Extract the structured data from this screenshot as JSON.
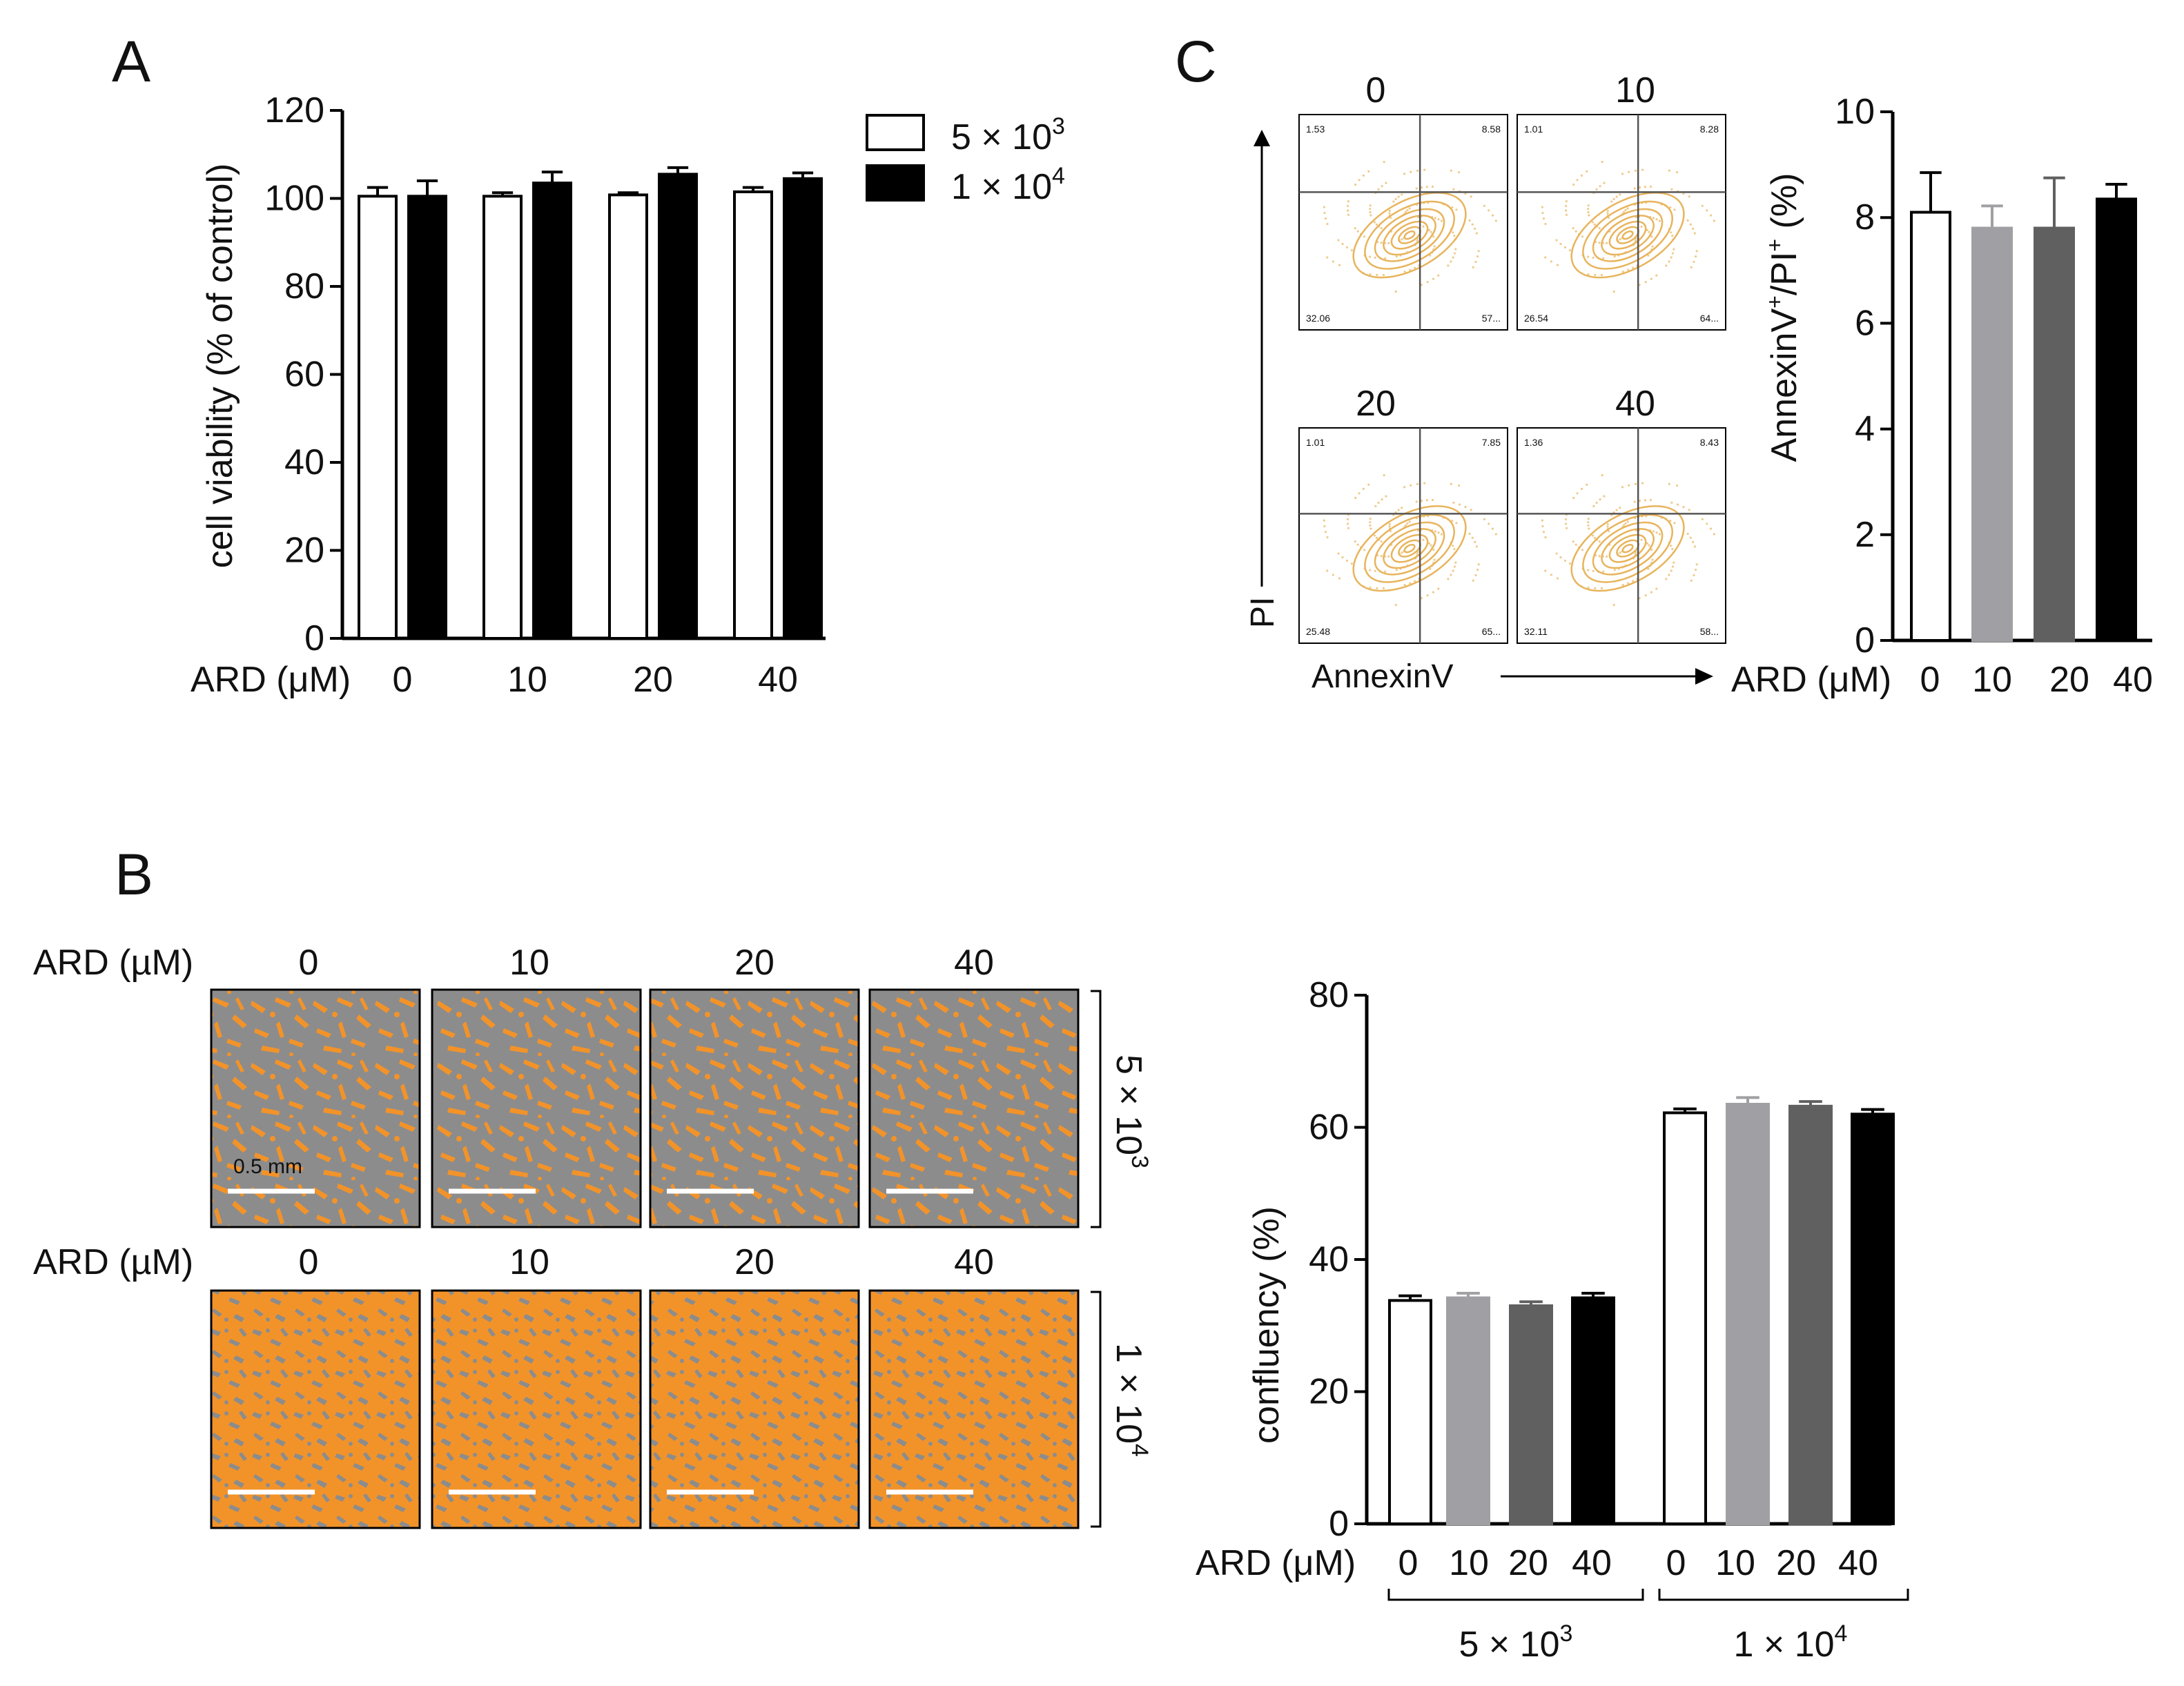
{
  "figure": {
    "panel_labels": {
      "A": "A",
      "B": "B",
      "C": "C"
    },
    "ard_label": "ARD (μM)",
    "ard_label_alt": "ARD (µM)",
    "times_sign": "×",
    "density_5e3": {
      "base": "5 × 10",
      "exp": "3"
    },
    "density_1e4": {
      "base": "1 × 10",
      "exp": "4"
    }
  },
  "panel_b_images": {
    "row_labels": [
      "5 × 10³",
      "1 × 10⁴"
    ],
    "column_labels": [
      "0",
      "10",
      "20",
      "40"
    ],
    "scale_bar_label": "0.5 mm",
    "cell_color": "#f2932a",
    "background_color": "#8c8c8c"
  },
  "panel_c_flow": {
    "x_axis_label": "AnnexinV",
    "y_axis_label": "PI",
    "contour_color": "#e8b45c",
    "plots": [
      {
        "title": "0",
        "q_ul": "1.53",
        "q_ur": "8.58",
        "q_ll": "32.06",
        "q_lr": "57..."
      },
      {
        "title": "10",
        "q_ul": "1.01",
        "q_ur": "8.28",
        "q_ll": "26.54",
        "q_lr": "64..."
      },
      {
        "title": "20",
        "q_ul": "1.01",
        "q_ur": "7.85",
        "q_ll": "25.48",
        "q_lr": "65..."
      },
      {
        "title": "40",
        "q_ul": "1.36",
        "q_ur": "8.43",
        "q_ll": "32.11",
        "q_lr": "58..."
      }
    ]
  },
  "chart_data": [
    {
      "id": "A",
      "type": "bar",
      "title": "",
      "xlabel": "ARD (μM)",
      "ylabel": "cell viability (% of control)",
      "ylim": [
        0,
        120
      ],
      "yticks": [
        0,
        20,
        40,
        60,
        80,
        100,
        120
      ],
      "categories": [
        "0",
        "10",
        "20",
        "40"
      ],
      "legend_position": "top-right",
      "series": [
        {
          "name": "5 × 10³",
          "fill": "#ffffff",
          "values": [
            100.5,
            100.5,
            100.8,
            101.5
          ],
          "errors": [
            2.0,
            0.8,
            0.5,
            1.0
          ]
        },
        {
          "name": "1 × 10⁴",
          "fill": "#000000",
          "values": [
            100.5,
            103.5,
            105.5,
            104.5
          ],
          "errors": [
            3.5,
            2.5,
            1.5,
            1.3
          ]
        }
      ]
    },
    {
      "id": "B",
      "type": "bar",
      "title": "",
      "xlabel": "ARD (μM)",
      "ylabel": "confluency (%)",
      "ylim": [
        0,
        80
      ],
      "yticks": [
        0,
        20,
        40,
        60,
        80
      ],
      "group_labels": [
        "5 × 10³",
        "1 × 10⁴"
      ],
      "categories": [
        "0",
        "10",
        "20",
        "40"
      ],
      "bar_fills": [
        "#ffffff",
        "#a0a0a4",
        "#606060",
        "#000000"
      ],
      "series": [
        {
          "name": "5 × 10³",
          "values": [
            33.8,
            34.2,
            33.0,
            34.2
          ],
          "errors": [
            0.7,
            0.7,
            0.6,
            0.7
          ]
        },
        {
          "name": "1 × 10⁴",
          "values": [
            62.2,
            63.5,
            63.2,
            62.0
          ],
          "errors": [
            0.6,
            1.0,
            0.7,
            0.7
          ]
        }
      ]
    },
    {
      "id": "C",
      "type": "bar",
      "title": "",
      "xlabel": "ARD (μM)",
      "ylabel": "AnnexinV⁺/PI⁺ (%)",
      "ylim": [
        0,
        10
      ],
      "yticks": [
        0,
        2,
        4,
        6,
        8,
        10
      ],
      "categories": [
        "0",
        "10",
        "20",
        "40"
      ],
      "bar_fills": [
        "#ffffff",
        "#a0a0a4",
        "#606060",
        "#000000"
      ],
      "values": [
        8.1,
        7.8,
        7.8,
        8.35
      ],
      "errors": [
        0.75,
        0.42,
        0.95,
        0.28
      ]
    }
  ]
}
